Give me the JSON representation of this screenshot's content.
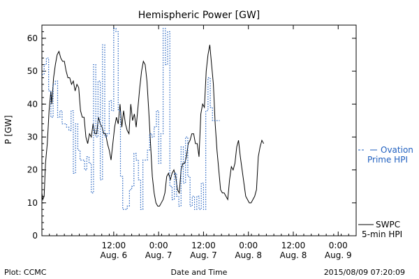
{
  "chart_data": {
    "type": "line",
    "title": "Hemispheric Power [GW]",
    "ylabel": "P [GW]",
    "xlabel": "Date and Time",
    "ylim": [
      0,
      64
    ],
    "xlim": [
      5.2,
      8.7
    ],
    "y_ticks": [
      0,
      10,
      20,
      30,
      40,
      50,
      60
    ],
    "x_ticks": [
      {
        "x": 6.0,
        "time": "12:00",
        "date": "Aug. 6"
      },
      {
        "x": 6.5,
        "time": "0:00",
        "date": "Aug. 7"
      },
      {
        "x": 7.0,
        "time": "12:00",
        "date": "Aug. 7"
      },
      {
        "x": 7.5,
        "time": "0:00",
        "date": "Aug. 8"
      },
      {
        "x": 8.0,
        "time": "12:00",
        "date": "Aug. 8"
      },
      {
        "x": 8.5,
        "time": "0:00",
        "date": "Aug. 9"
      }
    ],
    "x_units": "days since Aug. 0 00:00 (Aug. 6 12:00 = 6.0 is plotted as day index)",
    "series": [
      {
        "name": "SWPC 5-min HPI",
        "color": "#000000",
        "style": "solid",
        "points": [
          [
            5.2,
            13
          ],
          [
            5.21,
            11
          ],
          [
            5.225,
            12
          ],
          [
            5.24,
            22
          ],
          [
            5.26,
            28
          ],
          [
            5.28,
            38
          ],
          [
            5.3,
            44
          ],
          [
            5.31,
            40
          ],
          [
            5.33,
            48
          ],
          [
            5.35,
            52
          ],
          [
            5.37,
            55
          ],
          [
            5.39,
            56
          ],
          [
            5.41,
            54
          ],
          [
            5.43,
            53
          ],
          [
            5.45,
            53
          ],
          [
            5.47,
            50
          ],
          [
            5.49,
            48
          ],
          [
            5.51,
            48
          ],
          [
            5.53,
            46
          ],
          [
            5.55,
            47
          ],
          [
            5.57,
            44
          ],
          [
            5.59,
            46
          ],
          [
            5.61,
            45
          ],
          [
            5.63,
            38
          ],
          [
            5.65,
            36
          ],
          [
            5.67,
            36
          ],
          [
            5.69,
            30
          ],
          [
            5.71,
            28
          ],
          [
            5.73,
            31
          ],
          [
            5.75,
            30
          ],
          [
            5.77,
            34
          ],
          [
            5.79,
            31
          ],
          [
            5.81,
            31
          ],
          [
            5.83,
            36
          ],
          [
            5.85,
            34
          ],
          [
            5.87,
            33
          ],
          [
            5.89,
            31
          ],
          [
            5.91,
            31
          ],
          [
            5.93,
            28
          ],
          [
            5.95,
            26
          ],
          [
            5.97,
            23
          ],
          [
            5.99,
            28
          ],
          [
            6.01,
            33
          ],
          [
            6.03,
            36
          ],
          [
            6.05,
            34
          ],
          [
            6.07,
            40
          ],
          [
            6.09,
            33
          ],
          [
            6.11,
            38
          ],
          [
            6.13,
            34
          ],
          [
            6.15,
            32
          ],
          [
            6.17,
            31
          ],
          [
            6.19,
            40
          ],
          [
            6.21,
            35
          ],
          [
            6.23,
            37
          ],
          [
            6.25,
            33
          ],
          [
            6.27,
            39
          ],
          [
            6.29,
            45
          ],
          [
            6.31,
            50
          ],
          [
            6.33,
            53
          ],
          [
            6.35,
            52
          ],
          [
            6.37,
            47
          ],
          [
            6.39,
            38
          ],
          [
            6.41,
            28
          ],
          [
            6.43,
            18
          ],
          [
            6.45,
            13
          ],
          [
            6.47,
            10
          ],
          [
            6.49,
            9
          ],
          [
            6.51,
            9
          ],
          [
            6.53,
            10
          ],
          [
            6.55,
            11
          ],
          [
            6.57,
            13
          ],
          [
            6.59,
            18
          ],
          [
            6.61,
            19
          ],
          [
            6.63,
            17
          ],
          [
            6.65,
            19
          ],
          [
            6.67,
            20
          ],
          [
            6.69,
            18
          ],
          [
            6.71,
            14
          ],
          [
            6.73,
            13
          ],
          [
            6.75,
            20
          ],
          [
            6.77,
            22
          ],
          [
            6.79,
            22
          ],
          [
            6.81,
            24
          ],
          [
            6.83,
            28
          ],
          [
            6.85,
            29
          ],
          [
            6.87,
            31
          ],
          [
            6.89,
            31
          ],
          [
            6.91,
            28
          ],
          [
            6.93,
            28
          ],
          [
            6.95,
            24
          ],
          [
            6.97,
            37
          ],
          [
            6.99,
            40
          ],
          [
            7.01,
            39
          ],
          [
            7.03,
            50
          ],
          [
            7.05,
            55
          ],
          [
            7.07,
            58
          ],
          [
            7.09,
            52
          ],
          [
            7.11,
            46
          ],
          [
            7.13,
            34
          ],
          [
            7.15,
            26
          ],
          [
            7.17,
            20
          ],
          [
            7.19,
            14
          ],
          [
            7.21,
            13
          ],
          [
            7.23,
            13
          ],
          [
            7.25,
            12
          ],
          [
            7.27,
            11
          ],
          [
            7.29,
            17
          ],
          [
            7.31,
            21
          ],
          [
            7.33,
            20
          ],
          [
            7.35,
            22
          ],
          [
            7.37,
            27
          ],
          [
            7.39,
            29
          ],
          [
            7.41,
            24
          ],
          [
            7.43,
            20
          ],
          [
            7.45,
            16
          ],
          [
            7.47,
            12
          ],
          [
            7.49,
            11
          ],
          [
            7.51,
            10
          ],
          [
            7.53,
            10
          ],
          [
            7.55,
            11
          ],
          [
            7.57,
            12
          ],
          [
            7.59,
            14
          ],
          [
            7.61,
            24
          ],
          [
            7.63,
            27
          ],
          [
            7.65,
            29
          ],
          [
            7.67,
            28
          ]
        ]
      },
      {
        "name": "Ovation Prime HPI",
        "color": "#1f5fbf",
        "style": "dotted",
        "points": [
          [
            5.2,
            49
          ],
          [
            5.225,
            52
          ],
          [
            5.25,
            54
          ],
          [
            5.275,
            44
          ],
          [
            5.3,
            36
          ],
          [
            5.325,
            46
          ],
          [
            5.35,
            47
          ],
          [
            5.375,
            36
          ],
          [
            5.4,
            38
          ],
          [
            5.425,
            34
          ],
          [
            5.45,
            34
          ],
          [
            5.475,
            33
          ],
          [
            5.5,
            32
          ],
          [
            5.525,
            38
          ],
          [
            5.55,
            19
          ],
          [
            5.575,
            34
          ],
          [
            5.6,
            26
          ],
          [
            5.625,
            23
          ],
          [
            5.65,
            23
          ],
          [
            5.675,
            20
          ],
          [
            5.7,
            24
          ],
          [
            5.725,
            22
          ],
          [
            5.75,
            13
          ],
          [
            5.775,
            52
          ],
          [
            5.8,
            30
          ],
          [
            5.825,
            47
          ],
          [
            5.85,
            17
          ],
          [
            5.875,
            58
          ],
          [
            5.9,
            30
          ],
          [
            5.925,
            31
          ],
          [
            5.95,
            41
          ],
          [
            5.975,
            38
          ],
          [
            6.0,
            63
          ],
          [
            6.025,
            62
          ],
          [
            6.05,
            38
          ],
          [
            6.075,
            18
          ],
          [
            6.1,
            8
          ],
          [
            6.125,
            8
          ],
          [
            6.15,
            9
          ],
          [
            6.175,
            14
          ],
          [
            6.2,
            15
          ],
          [
            6.225,
            25
          ],
          [
            6.25,
            23
          ],
          [
            6.275,
            17
          ],
          [
            6.3,
            8
          ],
          [
            6.325,
            23
          ],
          [
            6.35,
            23
          ],
          [
            6.375,
            26
          ],
          [
            6.4,
            31
          ],
          [
            6.425,
            30
          ],
          [
            6.45,
            33
          ],
          [
            6.475,
            38
          ],
          [
            6.5,
            22
          ],
          [
            6.525,
            31
          ],
          [
            6.55,
            63
          ],
          [
            6.575,
            52
          ],
          [
            6.6,
            62
          ],
          [
            6.625,
            15
          ],
          [
            6.65,
            11
          ],
          [
            6.675,
            19
          ],
          [
            6.7,
            12
          ],
          [
            6.725,
            9
          ],
          [
            6.75,
            27
          ],
          [
            6.775,
            16
          ],
          [
            6.8,
            30
          ],
          [
            6.825,
            18
          ],
          [
            6.85,
            9
          ],
          [
            6.875,
            12
          ],
          [
            6.9,
            8
          ],
          [
            6.925,
            12
          ],
          [
            6.95,
            8
          ],
          [
            6.975,
            16
          ],
          [
            7.0,
            8
          ],
          [
            7.025,
            38
          ],
          [
            7.05,
            48
          ],
          [
            7.075,
            39
          ],
          [
            7.1,
            35
          ],
          [
            7.125,
            35
          ]
        ]
      }
    ],
    "legend": [
      {
        "line1": "Ovation",
        "line2": "Prime HPI",
        "color": "#1f5fbf",
        "placement": "right"
      },
      {
        "line1": "SWPC",
        "line2": "5-min HPI",
        "color": "#000000",
        "placement": "bottom-right"
      }
    ]
  },
  "footer": {
    "source": "Plot: CCMC",
    "timestamp": "2015/08/09 07:20:09"
  }
}
